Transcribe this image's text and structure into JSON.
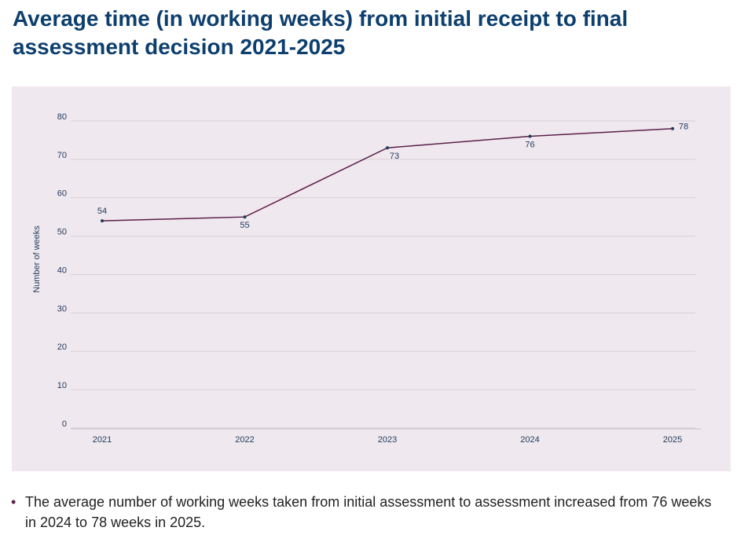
{
  "chart_data": {
    "type": "line",
    "title": "Average time (in working weeks) from initial receipt to final assessment decision 2021-2025",
    "y_label": "Number of weeks",
    "categories": [
      "2021",
      "2022",
      "2023",
      "2024",
      "2025"
    ],
    "series": [
      {
        "color": "#5c1f4a",
        "values": [
          54,
          55,
          73,
          76,
          78
        ]
      }
    ],
    "ylim": [
      0,
      80
    ],
    "yticks": [
      0,
      10,
      20,
      30,
      40,
      50,
      60,
      70,
      80
    ],
    "grid": true
  },
  "bullets": [
    "The average number of working weeks taken from initial assessment to assessment increased from 76 weeks in 2024 to 78 weeks in 2025."
  ]
}
